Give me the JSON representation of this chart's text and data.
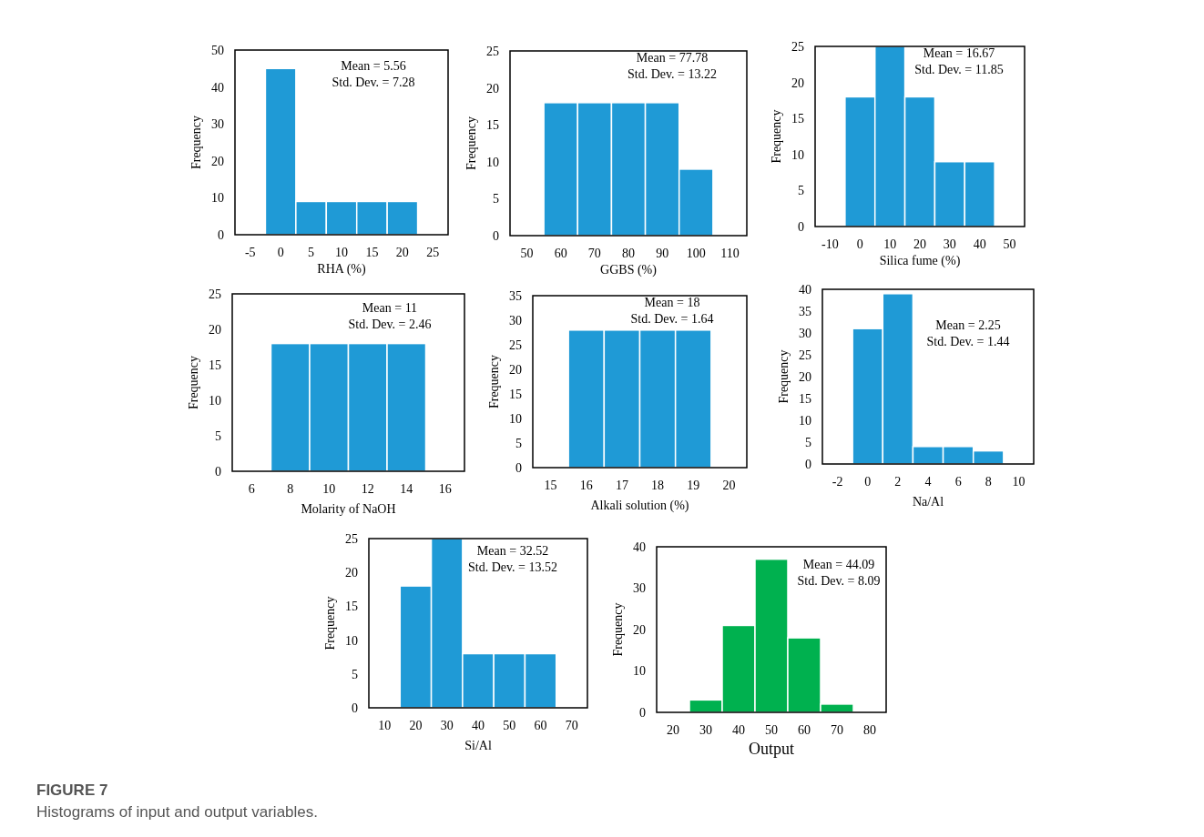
{
  "chart_data": [
    {
      "type": "histogram",
      "xlabel": "RHA (%)",
      "ylabel": "Frequency",
      "bins": [
        -2.5,
        2.5,
        7.5,
        12.5,
        17.5,
        22.5
      ],
      "values": [
        45,
        9,
        9,
        9,
        9
      ],
      "color": "#1f9ad6",
      "xlim": [
        -7.5,
        27.5
      ],
      "xticks": [
        -5,
        0,
        5,
        10,
        15,
        20,
        25
      ],
      "ylim": [
        0,
        50
      ],
      "yticks": [
        0,
        10,
        20,
        30,
        40,
        50
      ],
      "annotations": [
        "Mean = 5.56",
        "Std. Dev. = 7.28"
      ]
    },
    {
      "type": "histogram",
      "xlabel": "GGBS (%)",
      "ylabel": "Frequency",
      "bins": [
        55,
        65,
        75,
        85,
        95,
        105
      ],
      "values": [
        18,
        18,
        18,
        18,
        9
      ],
      "color": "#1f9ad6",
      "xlim": [
        45,
        115
      ],
      "xticks": [
        50,
        60,
        70,
        80,
        90,
        100,
        110
      ],
      "ylim": [
        0,
        25
      ],
      "yticks": [
        0,
        5,
        10,
        15,
        20,
        25
      ],
      "annotations": [
        "Mean = 77.78",
        "Std. Dev. = 13.22"
      ]
    },
    {
      "type": "histogram",
      "xlabel": "Silica fume (%)",
      "ylabel": "Frequency",
      "bins": [
        -5,
        5,
        15,
        25,
        35,
        45
      ],
      "values": [
        18,
        25,
        18,
        9,
        9
      ],
      "color": "#1f9ad6",
      "xlim": [
        -15,
        55
      ],
      "xticks": [
        -10,
        0,
        10,
        20,
        30,
        40,
        50
      ],
      "ylim": [
        0,
        25
      ],
      "yticks": [
        0,
        5,
        10,
        15,
        20,
        25
      ],
      "annotations": [
        "Mean = 16.67",
        "Std. Dev. = 11.85"
      ]
    },
    {
      "type": "histogram",
      "xlabel": "Molarity of NaOH",
      "ylabel": "Frequency",
      "bins": [
        7,
        9,
        11,
        13,
        15
      ],
      "values": [
        18,
        18,
        18,
        18
      ],
      "color": "#1f9ad6",
      "xlim": [
        5,
        17
      ],
      "xticks": [
        6,
        8,
        10,
        12,
        14,
        16
      ],
      "ylim": [
        0,
        25
      ],
      "yticks": [
        0,
        5,
        10,
        15,
        20,
        25
      ],
      "annotations": [
        "Mean = 11",
        "Std. Dev. = 2.46"
      ]
    },
    {
      "type": "histogram",
      "xlabel": "Alkali solution (%)",
      "ylabel": "Frequency",
      "bins": [
        15.5,
        16.5,
        17.5,
        18.5,
        19.5
      ],
      "values": [
        28,
        28,
        28,
        28
      ],
      "color": "#1f9ad6",
      "xlim": [
        14.5,
        20.5
      ],
      "xticks": [
        15,
        16,
        17,
        18,
        19,
        20
      ],
      "ylim": [
        0,
        35
      ],
      "yticks": [
        0,
        5,
        10,
        15,
        20,
        25,
        30,
        35
      ],
      "annotations": [
        "Mean = 18",
        "Std. Dev. = 1.64"
      ]
    },
    {
      "type": "histogram",
      "xlabel": "Na/Al",
      "ylabel": "Frequency",
      "bins": [
        -1,
        1,
        3,
        5,
        7,
        9
      ],
      "values": [
        31,
        39,
        4,
        4,
        3
      ],
      "color": "#1f9ad6",
      "xlim": [
        -3,
        11
      ],
      "xticks": [
        -2,
        0,
        2,
        4,
        6,
        8,
        10
      ],
      "ylim": [
        0,
        40
      ],
      "yticks": [
        0,
        5,
        10,
        15,
        20,
        25,
        30,
        35,
        40
      ],
      "annotations": [
        "Mean = 2.25",
        "Std. Dev. = 1.44"
      ]
    },
    {
      "type": "histogram",
      "xlabel": "Si/Al",
      "ylabel": "Frequency",
      "bins": [
        15,
        25,
        35,
        45,
        55,
        65
      ],
      "values": [
        18,
        25,
        8,
        8,
        8
      ],
      "color": "#1f9ad6",
      "xlim": [
        5,
        75
      ],
      "xticks": [
        10,
        20,
        30,
        40,
        50,
        60,
        70
      ],
      "ylim": [
        0,
        25
      ],
      "yticks": [
        0,
        5,
        10,
        15,
        20,
        25
      ],
      "annotations": [
        "Mean = 32.52",
        "Std. Dev. = 13.52"
      ]
    },
    {
      "type": "histogram",
      "xlabel": "Output",
      "ylabel": "Frequency",
      "bins": [
        25,
        35,
        45,
        55,
        65,
        75
      ],
      "values": [
        3,
        21,
        37,
        18,
        2
      ],
      "color": "#00b14f",
      "xlim": [
        15,
        85
      ],
      "xticks": [
        20,
        30,
        40,
        50,
        60,
        70,
        80
      ],
      "ylim": [
        0,
        40
      ],
      "yticks": [
        0,
        10,
        20,
        30,
        40
      ],
      "annotations": [
        "Mean = 44.09",
        "Std. Dev. = 8.09"
      ]
    },
    {
      "type": "other",
      "title": "FIGURE 7",
      "subtitle": "Histograms of input and output variables."
    }
  ]
}
